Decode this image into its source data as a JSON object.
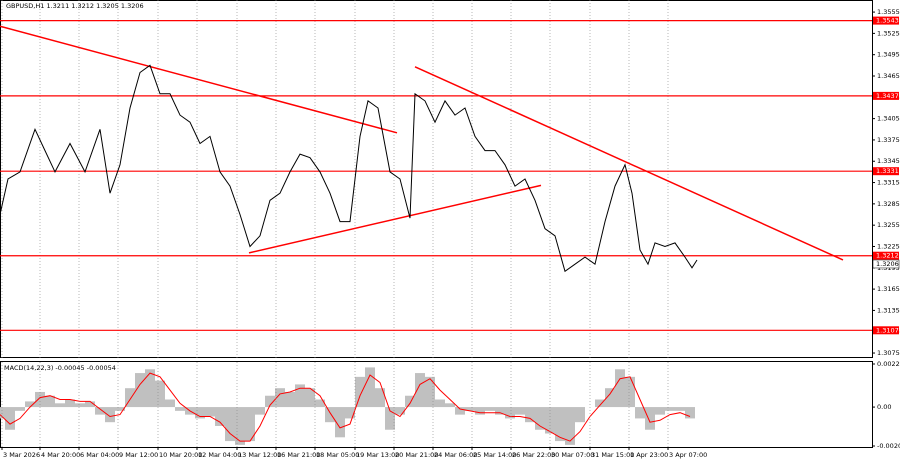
{
  "chart_data": [
    {
      "type": "line",
      "title": "GBPUSD,H1  1.3211 1.3212 1.3205 1.3206",
      "color": "#000000",
      "grid": true,
      "xlim": [
        0,
        872
      ],
      "ylim": [
        1.3068,
        1.3572
      ],
      "xticks": [
        {
          "value": 2,
          "label": "3 Mar 2026"
        },
        {
          "value": 40,
          "label": "4 Mar 20:00"
        },
        {
          "value": 79,
          "label": "6 Mar 04:00"
        },
        {
          "value": 118,
          "label": "9 Mar 12:00"
        },
        {
          "value": 158,
          "label": "10 Mar 20:00"
        },
        {
          "value": 197,
          "label": "12 Mar 04:00"
        },
        {
          "value": 237,
          "label": "13 Mar 12:00"
        },
        {
          "value": 276,
          "label": "16 Mar 21:00"
        },
        {
          "value": 315,
          "label": "18 Mar 05:00"
        },
        {
          "value": 355,
          "label": "19 Mar 13:00"
        },
        {
          "value": 394,
          "label": "20 Mar 21:00"
        },
        {
          "value": 433,
          "label": "24 Mar 06:00"
        },
        {
          "value": 472,
          "label": "25 Mar 14:00"
        },
        {
          "value": 511,
          "label": "26 Mar 22:00"
        },
        {
          "value": 550,
          "label": "30 Mar 07:00"
        },
        {
          "value": 590,
          "label": "31 Mar 15:00"
        },
        {
          "value": 629,
          "label": "1 Apr 23:00"
        },
        {
          "value": 668,
          "label": "3 Apr 07:00"
        }
      ],
      "yticks": [
        1.3555,
        1.3525,
        1.3495,
        1.3465,
        1.3435,
        1.3405,
        1.3375,
        1.3345,
        1.3315,
        1.3285,
        1.3255,
        1.3225,
        1.3195,
        1.3165,
        1.3135,
        1.3105,
        1.3075
      ],
      "x": [
        0,
        8,
        20,
        35,
        45,
        55,
        70,
        85,
        100,
        110,
        120,
        130,
        140,
        150,
        160,
        170,
        180,
        190,
        200,
        210,
        220,
        230,
        240,
        250,
        260,
        270,
        280,
        290,
        300,
        310,
        320,
        330,
        340,
        350,
        360,
        368,
        378,
        390,
        400,
        410,
        415,
        425,
        435,
        445,
        455,
        465,
        475,
        485,
        495,
        505,
        515,
        525,
        535,
        545,
        555,
        565,
        575,
        585,
        595,
        605,
        615,
        625,
        632,
        640,
        648,
        655,
        665,
        675,
        685,
        692,
        697
      ],
      "values": [
        1.327,
        1.332,
        1.333,
        1.339,
        1.336,
        1.333,
        1.337,
        1.333,
        1.339,
        1.33,
        1.334,
        1.342,
        1.347,
        1.348,
        1.344,
        1.344,
        1.341,
        1.34,
        1.337,
        1.338,
        1.333,
        1.331,
        1.327,
        1.3225,
        1.324,
        1.329,
        1.33,
        1.333,
        1.3355,
        1.335,
        1.333,
        1.33,
        1.326,
        1.326,
        1.338,
        1.343,
        1.342,
        1.333,
        1.332,
        1.3265,
        1.344,
        1.343,
        1.34,
        1.343,
        1.341,
        1.342,
        1.338,
        1.336,
        1.336,
        1.334,
        1.331,
        1.332,
        1.329,
        1.325,
        1.324,
        1.319,
        1.32,
        1.321,
        1.32,
        1.326,
        1.331,
        1.334,
        1.33,
        1.322,
        1.32,
        1.323,
        1.3225,
        1.323,
        1.321,
        1.3195,
        1.3206
      ],
      "levels": [
        {
          "value": 1.3543,
          "label": "1.3543"
        },
        {
          "value": 1.3437,
          "label": "1.3437"
        },
        {
          "value": 1.3331,
          "label": "1.3331"
        },
        {
          "value": 1.3212,
          "label": "1.3212"
        },
        {
          "value": 1.3107,
          "label": "1.3107"
        }
      ],
      "level_color": "#ff0000",
      "current_price": {
        "value": 1.3206,
        "label": "1.3206"
      },
      "trend_lines": [
        {
          "x": [
            0,
            397
          ],
          "values": [
            1.3535,
            1.3385
          ]
        },
        {
          "x": [
            249,
            541
          ],
          "values": [
            1.3216,
            1.3311
          ]
        },
        {
          "x": [
            415,
            843
          ],
          "values": [
            1.3478,
            1.3206
          ]
        }
      ]
    },
    {
      "type": "macd",
      "title": "MACD(14,22,3) -0.00045 -0.00054",
      "xlim": [
        0,
        872
      ],
      "ylim": [
        -0.00206,
        0.00228
      ],
      "yticks": [
        0.00228,
        {
          "value": 0,
          "label": "0.00"
        },
        -0.00206
      ],
      "x": [
        0,
        10,
        20,
        30,
        40,
        50,
        60,
        70,
        80,
        90,
        100,
        110,
        120,
        130,
        140,
        150,
        160,
        170,
        180,
        190,
        200,
        210,
        220,
        230,
        240,
        250,
        260,
        270,
        280,
        290,
        300,
        310,
        320,
        330,
        340,
        350,
        360,
        370,
        380,
        390,
        400,
        410,
        420,
        430,
        440,
        450,
        460,
        470,
        480,
        490,
        500,
        510,
        520,
        530,
        540,
        550,
        560,
        570,
        580,
        590,
        600,
        610,
        620,
        630,
        640,
        650,
        660,
        670,
        680,
        690
      ],
      "series": [
        {
          "color": "#c0c0c0",
          "values": [
            -0.0006,
            -0.0012,
            -0.0002,
            0.0003,
            0.0008,
            0.0006,
            0.0002,
            0.0004,
            0.0002,
            0.0003,
            -0.0004,
            -0.0008,
            -0.0002,
            0.001,
            0.0018,
            0.002,
            0.0014,
            0.0004,
            -0.0002,
            -0.0004,
            -0.0006,
            -0.0005,
            -0.001,
            -0.0018,
            -0.002,
            -0.0018,
            -0.0004,
            0.0006,
            0.001,
            0.0008,
            0.0012,
            0.001,
            0.0004,
            -0.0008,
            -0.0016,
            -0.0006,
            0.0016,
            0.0021,
            0.001,
            -0.0012,
            -0.0004,
            0.0006,
            0.0018,
            0.0016,
            0.0004,
            0.0002,
            -0.0004,
            -0.0002,
            -0.0004,
            -0.0002,
            -0.0004,
            -0.0006,
            -0.0004,
            -0.0008,
            -0.0012,
            -0.0014,
            -0.0018,
            -0.002,
            -0.0008,
            0.0,
            0.0004,
            0.001,
            0.002,
            0.0016,
            -0.0006,
            -0.0012,
            -0.0004,
            -0.0002,
            -0.0002,
            -0.0006
          ]
        },
        {
          "color": "#ff0000",
          "values": [
            -0.0004,
            -0.0009,
            -0.0006,
            0.0,
            0.0005,
            0.0006,
            0.0004,
            0.0004,
            0.0003,
            0.0003,
            -0.0001,
            -0.0005,
            -0.0004,
            0.0004,
            0.0012,
            0.0018,
            0.0016,
            0.0009,
            0.0002,
            -0.0002,
            -0.0005,
            -0.0005,
            -0.0008,
            -0.0014,
            -0.0018,
            -0.0018,
            -0.001,
            0.0001,
            0.0007,
            0.0008,
            0.001,
            0.001,
            0.0006,
            -0.0003,
            -0.0011,
            -0.0009,
            0.0006,
            0.0017,
            0.0013,
            -0.0002,
            -0.0005,
            0.0002,
            0.0012,
            0.0015,
            0.0009,
            0.0004,
            -0.0001,
            -0.0002,
            -0.0003,
            -0.0003,
            -0.0003,
            -0.0005,
            -0.0005,
            -0.0006,
            -0.001,
            -0.0013,
            -0.0016,
            -0.0018,
            -0.0013,
            -0.0005,
            0.0001,
            0.0007,
            0.0015,
            0.0016,
            0.0004,
            -0.0008,
            -0.0007,
            -0.0004,
            -0.0003,
            -0.0005
          ]
        }
      ]
    }
  ]
}
